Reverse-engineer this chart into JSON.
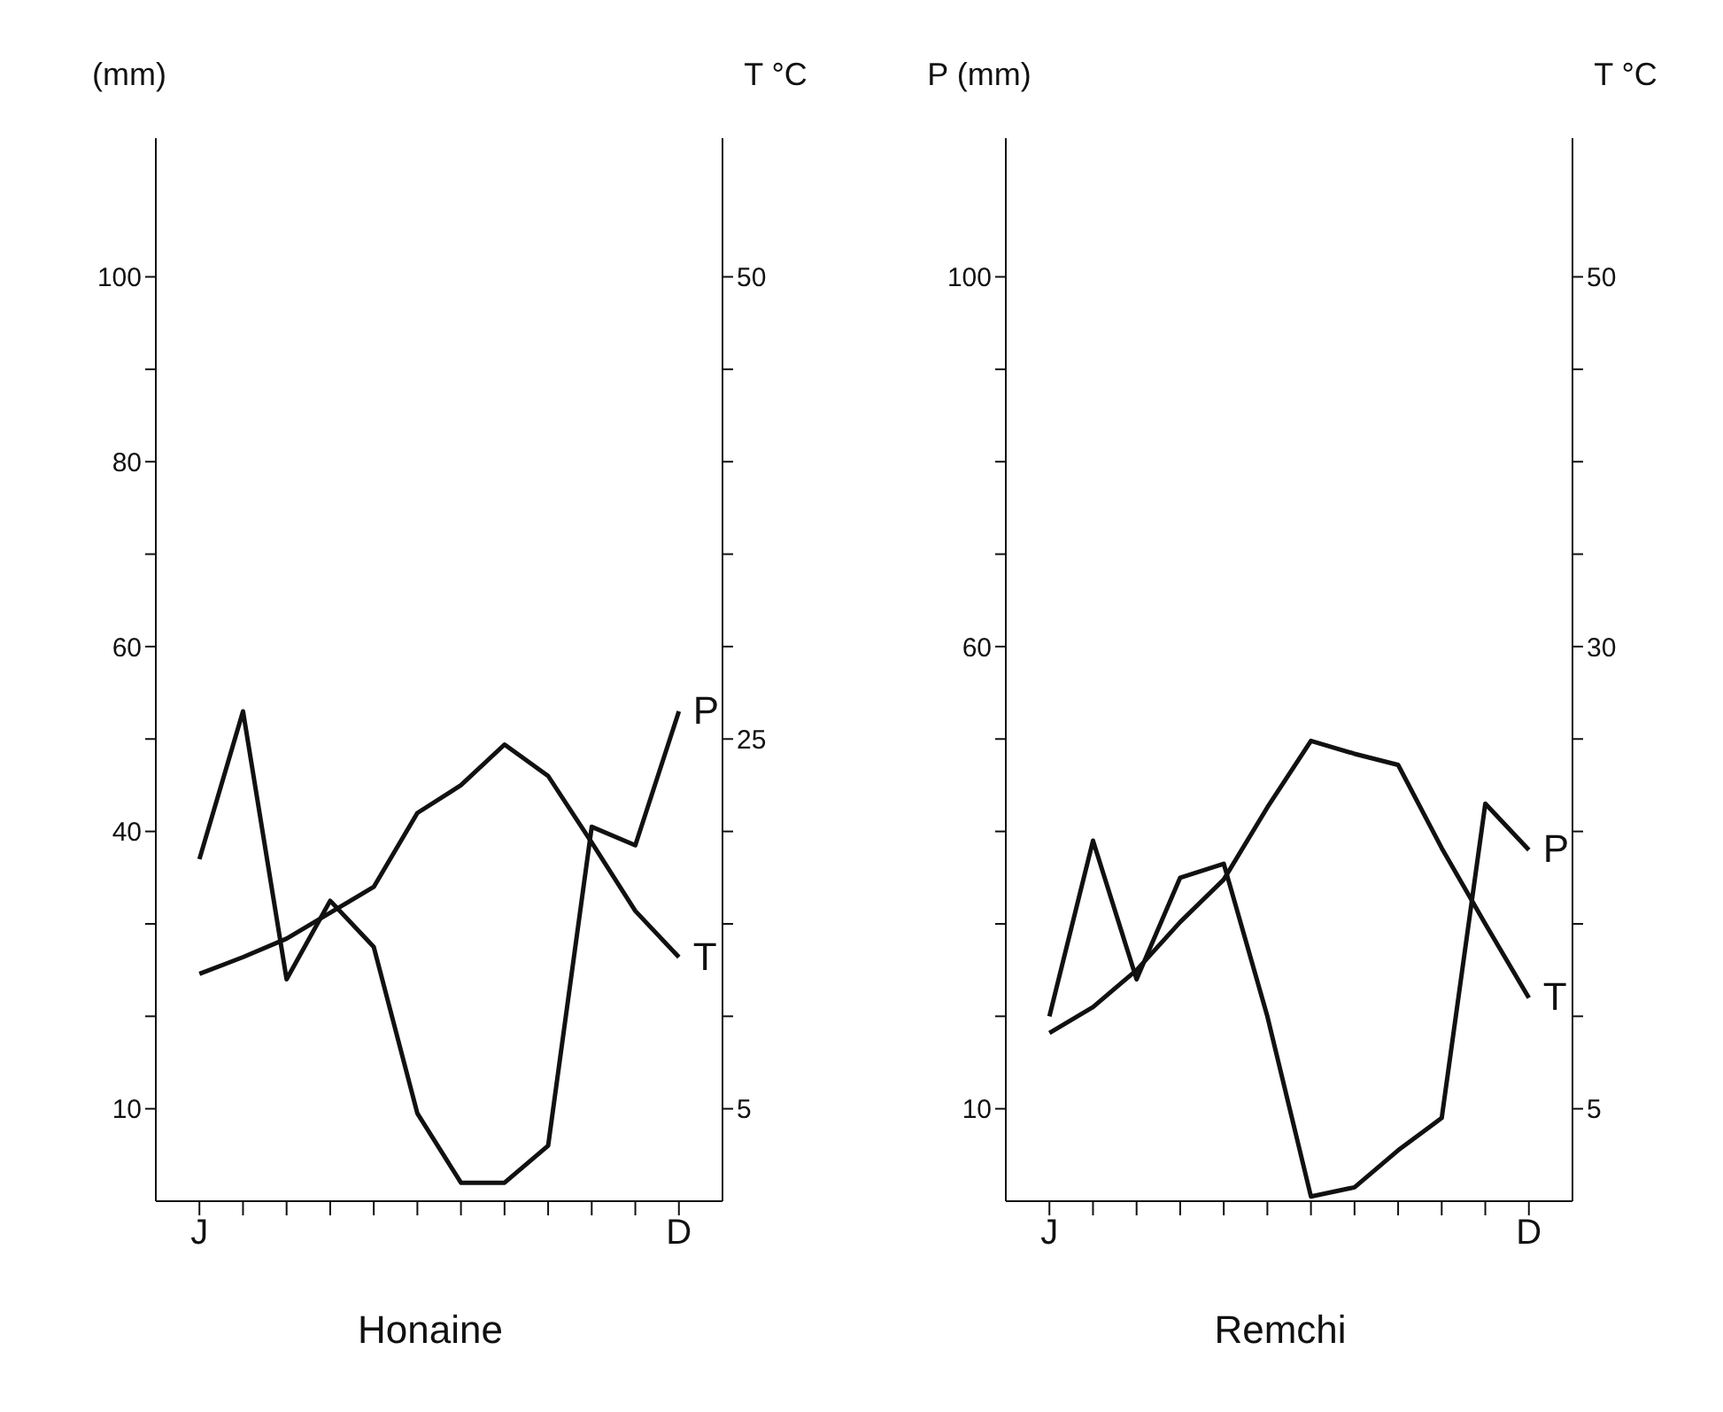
{
  "chart_data": [
    {
      "type": "line",
      "title": "Honaine",
      "ylabel": "(mm)",
      "y2label": "T °C",
      "categories": [
        "J",
        null,
        null,
        null,
        null,
        null,
        null,
        null,
        null,
        null,
        null,
        "D"
      ],
      "marker": "none",
      "ylim": [
        0,
        115
      ],
      "yticks": [
        10,
        {
          "value": 20,
          "label": null
        },
        {
          "value": 30,
          "label": null
        },
        40,
        {
          "value": 50,
          "label": null
        },
        60,
        {
          "value": 70,
          "label": null
        },
        80,
        {
          "value": 90,
          "label": null
        },
        100
      ],
      "y2lim": [
        0,
        57.5
      ],
      "y2ticks": [
        5,
        {
          "value": 10,
          "label": null
        },
        {
          "value": 15,
          "label": null
        },
        {
          "value": 20,
          "label": null
        },
        25,
        {
          "value": 30,
          "label": null
        },
        {
          "value": 35,
          "label": null
        },
        {
          "value": 40,
          "label": null
        },
        {
          "value": 45,
          "label": null
        },
        50
      ],
      "series": [
        {
          "name": "P",
          "color": "#111111",
          "values": [
            37,
            53,
            24,
            32.5,
            27.5,
            9.5,
            2,
            2,
            6,
            40.5,
            38.5,
            53
          ]
        },
        {
          "name": "T",
          "color": "#111111",
          "axis": "y2",
          "values": [
            12.3,
            13.2,
            14.2,
            15.6,
            17,
            21,
            22.5,
            24.7,
            23,
            19.4,
            15.7,
            13.2
          ]
        }
      ]
    },
    {
      "type": "line",
      "title": "Remchi",
      "ylabel": "P (mm)",
      "y2label": "T °C",
      "categories": [
        "J",
        null,
        null,
        null,
        null,
        null,
        null,
        null,
        null,
        null,
        null,
        "D"
      ],
      "marker": "none",
      "ylim": [
        0,
        115
      ],
      "yticks": [
        10,
        {
          "value": 20,
          "label": null
        },
        {
          "value": 30,
          "label": null
        },
        {
          "value": 40,
          "label": null
        },
        {
          "value": 50,
          "label": null
        },
        60,
        {
          "value": 70,
          "label": null
        },
        {
          "value": 80,
          "label": null
        },
        {
          "value": 90,
          "label": null
        },
        100
      ],
      "y2lim": [
        0,
        57.5
      ],
      "y2ticks": [
        5,
        {
          "value": 10,
          "label": null
        },
        {
          "value": 15,
          "label": null
        },
        {
          "value": 20,
          "label": null
        },
        {
          "value": 25,
          "label": null
        },
        30,
        {
          "value": 35,
          "label": null
        },
        {
          "value": 40,
          "label": null
        },
        {
          "value": 45,
          "label": null
        },
        50
      ],
      "series": [
        {
          "name": "P",
          "color": "#111111",
          "values": [
            20,
            39,
            24,
            35,
            36.5,
            20,
            0.5,
            1.5,
            5.5,
            9,
            43,
            38
          ]
        },
        {
          "name": "T",
          "color": "#111111",
          "axis": "y2",
          "values": [
            9.1,
            10.5,
            12.5,
            15.1,
            17.4,
            21.3,
            24.9,
            24.2,
            23.6,
            19.1,
            15,
            11
          ]
        }
      ]
    }
  ]
}
